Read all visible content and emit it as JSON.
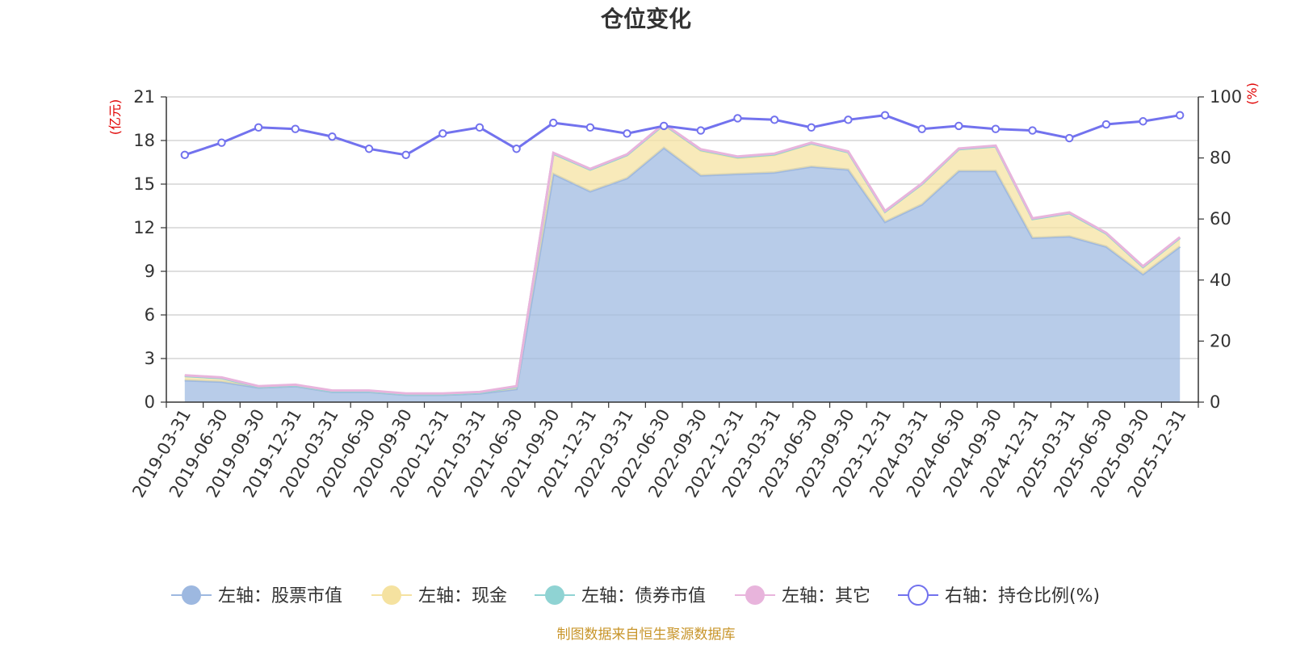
{
  "chart_data": {
    "type": "area",
    "title": "仓位变化",
    "left_unit": "(亿元)",
    "right_unit": "(%)",
    "x": [
      "2019-03-31",
      "2019-06-30",
      "2019-09-30",
      "2019-12-31",
      "2020-03-31",
      "2020-06-30",
      "2020-09-30",
      "2020-12-31",
      "2021-03-31",
      "2021-06-30",
      "2021-09-30",
      "2021-12-31",
      "2022-03-31",
      "2022-06-30",
      "2022-09-30",
      "2022-12-31",
      "2023-03-31",
      "2023-06-30",
      "2023-09-30",
      "2023-12-31",
      "2024-03-31",
      "2024-06-30",
      "2024-09-30",
      "2024-12-31",
      "2025-03-31",
      "2025-06-30",
      "2025-09-30",
      "2025-12-31"
    ],
    "y_left_ticks": [
      "0",
      "3",
      "6",
      "9",
      "12",
      "15",
      "18",
      "21"
    ],
    "y_right_ticks": [
      "0",
      "20",
      "40",
      "60",
      "80",
      "100"
    ],
    "ylim_left": [
      0,
      21
    ],
    "ylim_right": [
      0,
      100
    ],
    "series": [
      {
        "name": "左轴：股票市值",
        "axis": "left",
        "color": "#9db8e0",
        "values": [
          1.5,
          1.4,
          1.0,
          1.1,
          0.7,
          0.7,
          0.5,
          0.5,
          0.6,
          0.9,
          15.7,
          14.5,
          15.4,
          17.5,
          15.6,
          15.7,
          15.8,
          16.2,
          16.0,
          12.4,
          13.6,
          15.9,
          15.9,
          11.3,
          11.4,
          10.7,
          8.8,
          10.7
        ]
      },
      {
        "name": "左轴：现金",
        "axis": "left",
        "color": "#f5e2a0",
        "values": [
          0.3,
          0.25,
          0.05,
          0.05,
          0.05,
          0.05,
          0.05,
          0.05,
          0.05,
          0.15,
          1.4,
          1.5,
          1.6,
          1.6,
          1.7,
          1.1,
          1.2,
          1.6,
          1.2,
          0.7,
          1.4,
          1.5,
          1.7,
          1.3,
          1.6,
          0.9,
          0.5,
          0.6
        ]
      },
      {
        "name": "左轴：债券市值",
        "axis": "left",
        "color": "#8fd3d3",
        "values": [
          0,
          0,
          0,
          0,
          0,
          0,
          0,
          0,
          0,
          0,
          0,
          0,
          0,
          0,
          0.05,
          0.05,
          0.05,
          0,
          0,
          0,
          0,
          0,
          0,
          0,
          0,
          0,
          0,
          0
        ]
      },
      {
        "name": "左轴：其它",
        "axis": "left",
        "color": "#e8b4dc",
        "values": [
          0.05,
          0.05,
          0.05,
          0.05,
          0.05,
          0.05,
          0.05,
          0.05,
          0.05,
          0.05,
          0.05,
          0.05,
          0.05,
          0.05,
          0.05,
          0.05,
          0.05,
          0.05,
          0.05,
          0.05,
          0.05,
          0.05,
          0.05,
          0.05,
          0.05,
          0.05,
          0.05,
          0.05
        ]
      },
      {
        "name": "右轴：持仓比例(%)",
        "axis": "right",
        "color": "#7272ee",
        "values": [
          81,
          85,
          90,
          89.5,
          87,
          83,
          81,
          88,
          90,
          83,
          91.5,
          90,
          88,
          90.5,
          89,
          93,
          92.5,
          90,
          92.5,
          94,
          89.5,
          90.5,
          89.5,
          89,
          86.5,
          91,
          92,
          94
        ]
      }
    ],
    "source": "制图数据来自恒生聚源数据库"
  }
}
